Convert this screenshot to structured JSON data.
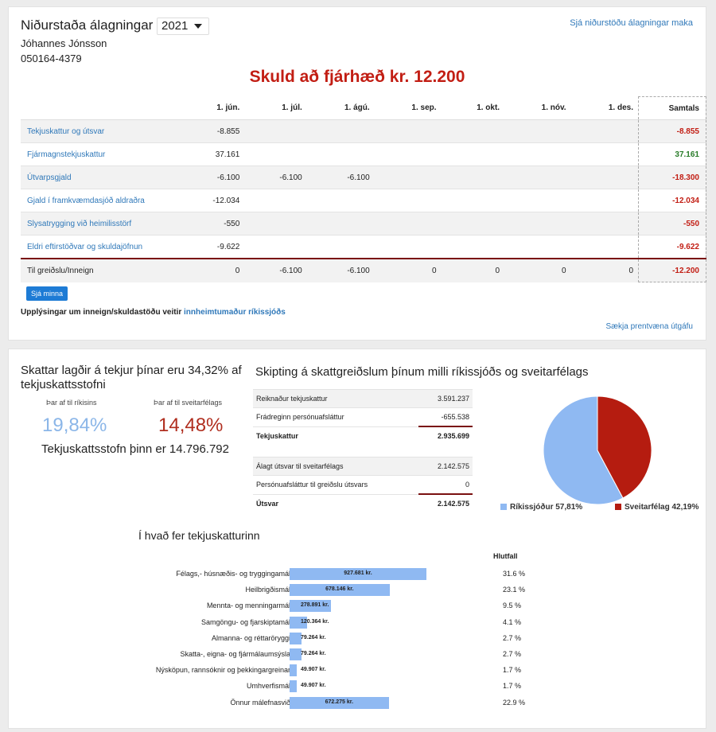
{
  "header": {
    "title": "Niðurstaða álagningar",
    "year": "2021",
    "name": "Jóhannes Jónsson",
    "kennitala": "050164-4379",
    "spouse_link": "Sjá niðurstöðu álagningar maka",
    "debt_text": "Skuld að fjárhæð kr. 12.200"
  },
  "tax_table": {
    "columns": [
      "1. jún.",
      "1. júl.",
      "1. ágú.",
      "1. sep.",
      "1. okt.",
      "1. nóv.",
      "1. des.",
      "Samtals"
    ],
    "rows": [
      {
        "label": "Tekjuskattur og útsvar",
        "cells": [
          "-8.855",
          "",
          "",
          "",
          "",
          "",
          ""
        ],
        "total": "-8.855",
        "sign": "neg"
      },
      {
        "label": "Fjármagnstekjuskattur",
        "cells": [
          "37.161",
          "",
          "",
          "",
          "",
          "",
          ""
        ],
        "total": "37.161",
        "sign": "pos"
      },
      {
        "label": "Útvarpsgjald",
        "cells": [
          "-6.100",
          "-6.100",
          "-6.100",
          "",
          "",
          "",
          ""
        ],
        "total": "-18.300",
        "sign": "neg"
      },
      {
        "label": "Gjald í framkvæmdasjóð aldraðra",
        "cells": [
          "-12.034",
          "",
          "",
          "",
          "",
          "",
          ""
        ],
        "total": "-12.034",
        "sign": "neg"
      },
      {
        "label": "Slysatrygging við heimilisstörf",
        "cells": [
          "-550",
          "",
          "",
          "",
          "",
          "",
          ""
        ],
        "total": "-550",
        "sign": "neg"
      },
      {
        "label": "Eldri eftirstöðvar og skuldajöfnun",
        "cells": [
          "-9.622",
          "",
          "",
          "",
          "",
          "",
          ""
        ],
        "total": "-9.622",
        "sign": "neg"
      }
    ],
    "footer": {
      "label": "Til greiðslu/Inneign",
      "cells": [
        "0",
        "-6.100",
        "-6.100",
        "0",
        "0",
        "0",
        "0"
      ],
      "total": "-12.200"
    }
  },
  "actions": {
    "see_less": "Sjá minna",
    "info_text": "Upplýsingar um inneign/skuldastöðu veitir ",
    "info_link": "innheimtumaður ríkissjóðs",
    "print_link": "Sækja prentvæna útgáfu"
  },
  "summary": {
    "heading": "Skattar lagðir á tekjur þínar eru 34,32% af tekjuskattsstofni",
    "state_label": "Þar af til ríkisins",
    "muni_label": "Þar af til sveitarfélags",
    "state_pct": "19,84%",
    "muni_pct": "14,48%",
    "base_text": "Tekjuskattsstofn þinn er 14.796.792"
  },
  "split": {
    "heading": "Skipting á skattgreiðslum þínum milli ríkissjóðs og sveitarfélags",
    "income_tax": [
      {
        "label": "Reiknaður tekjuskattur",
        "value": "3.591.237"
      },
      {
        "label": "Frádreginn persónuafsláttur",
        "value": "-655.538"
      },
      {
        "label": "Tekjuskattur",
        "value": "2.935.699"
      }
    ],
    "municipal": [
      {
        "label": "Álagt útsvar til sveitarfélags",
        "value": "2.142.575"
      },
      {
        "label": "Persónuafsláttur til greiðslu útsvars",
        "value": "0"
      },
      {
        "label": "Útsvar",
        "value": "2.142.575"
      }
    ],
    "pie": {
      "slices": [
        {
          "label": "Ríkissjóður 57,81%",
          "value": 57.81,
          "color": "#8fb9f2"
        },
        {
          "label": "Sveitarfélag 42,19%",
          "value": 42.19,
          "color": "#b51c10"
        }
      ]
    }
  },
  "spending": {
    "heading": "Í hvað fer tekjuskatturinn",
    "pct_header": "Hlutfall",
    "items": [
      {
        "label": "Félags,- húsnæðis- og tryggingamál",
        "amount": "927.681 kr.",
        "value": 927681,
        "pct": "31.6 %"
      },
      {
        "label": "Heilbrigðismál",
        "amount": "678.146 kr.",
        "value": 678146,
        "pct": "23.1 %"
      },
      {
        "label": "Mennta- og menningarmál",
        "amount": "278.891 kr.",
        "value": 278891,
        "pct": "9.5 %"
      },
      {
        "label": "Samgöngu- og fjarskiptamál",
        "amount": "120.364 kr.",
        "value": 120364,
        "pct": "4.1 %"
      },
      {
        "label": "Almanna- og réttaröryggi",
        "amount": "79.264 kr.",
        "value": 79264,
        "pct": "2.7 %"
      },
      {
        "label": "Skatta-, eigna- og fjármálaumsýsla",
        "amount": "79.264 kr.",
        "value": 79264,
        "pct": "2.7 %"
      },
      {
        "label": "Nýsköpun, rannsóknir og þekkingargreinar",
        "amount": "49.907 kr.",
        "value": 49907,
        "pct": "1.7 %"
      },
      {
        "label": "Umhverfismál",
        "amount": "49.907 kr.",
        "value": 49907,
        "pct": "1.7 %"
      },
      {
        "label": "Önnur málefnasvið",
        "amount": "672.275 kr.",
        "value": 672275,
        "pct": "22.9 %"
      }
    ]
  }
}
